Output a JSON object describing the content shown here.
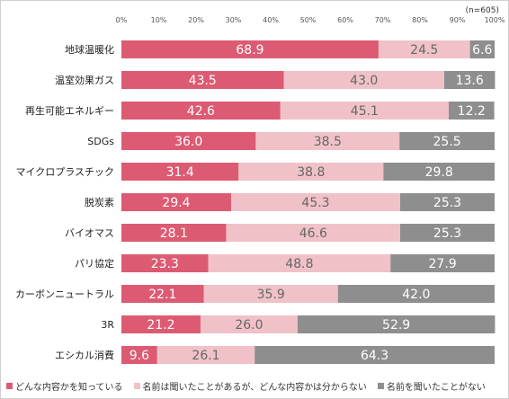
{
  "sample_note": "(n=605)",
  "chart_data": {
    "type": "bar",
    "orientation": "horizontal",
    "stacked": true,
    "xlim": [
      0,
      100
    ],
    "x_tick_labels": [
      "0%",
      "10%",
      "20%",
      "30%",
      "40%",
      "50%",
      "60%",
      "70%",
      "80%",
      "90%",
      "100%"
    ],
    "categories": [
      "地球温暖化",
      "温室効果ガス",
      "再生可能エネルギー",
      "SDGs",
      "マイクロプラスチック",
      "脱炭素",
      "バイオマス",
      "パリ協定",
      "カーボンニュートラル",
      "3R",
      "エシカル消費"
    ],
    "series": [
      {
        "name": "どんな内容かを知っている",
        "color": "#dc5b73",
        "label_color": "#ffffff",
        "values": [
          68.9,
          43.5,
          42.6,
          36.0,
          31.4,
          29.4,
          28.1,
          23.3,
          22.1,
          21.2,
          9.6
        ],
        "labels": [
          "68.9",
          "43.5",
          "42.6",
          "36.0",
          "31.4",
          "29.4",
          "28.1",
          "23.3",
          "22.1",
          "21.2",
          "9.6"
        ]
      },
      {
        "name": "名前は聞いたことがあるが、どんな内容かは分からない",
        "color": "#f0c2c8",
        "label_color": "#666666",
        "values": [
          24.5,
          43.0,
          45.1,
          38.5,
          38.8,
          45.3,
          46.6,
          48.8,
          35.9,
          26.0,
          26.1
        ],
        "labels": [
          "24.5",
          "43.0",
          "45.1",
          "38.5",
          "38.8",
          "45.3",
          "46.6",
          "48.8",
          "35.9",
          "26.0",
          "26.1"
        ]
      },
      {
        "name": "名前を聞いたことがない",
        "color": "#8e8e8e",
        "label_color": "#ffffff",
        "values": [
          6.6,
          13.6,
          12.2,
          25.5,
          29.8,
          25.3,
          25.3,
          27.9,
          42.0,
          52.9,
          64.3
        ],
        "labels": [
          "6.6",
          "13.6",
          "12.2",
          "25.5",
          "29.8",
          "25.3",
          "25.3",
          "27.9",
          "42.0",
          "52.9",
          "64.3"
        ]
      }
    ],
    "legend_position": "bottom",
    "grid": false
  }
}
